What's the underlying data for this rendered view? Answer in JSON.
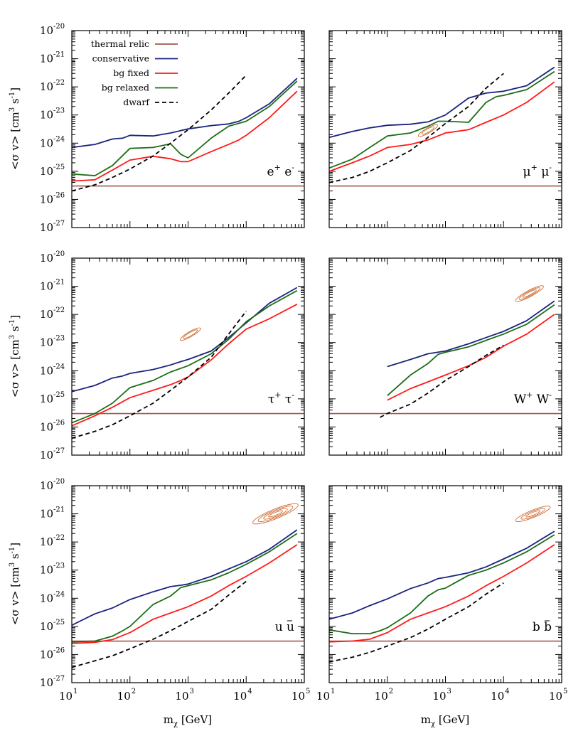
{
  "figure": {
    "ylabel": "<σ v> [cm³ s⁻¹]",
    "xlabel": "m_χ [GeV]",
    "ylabel_main": "<σ v> [cm",
    "ylabel_exp3": "3",
    "ylabel_mid": " s",
    "ylabel_expm1": "-1",
    "ylabel_end": "]",
    "xlabel_main": "m",
    "xlabel_sub": "χ",
    "xlabel_end": " [GeV]",
    "tick_base": "10"
  },
  "colors": {
    "thermal": "#a0584a",
    "conservative": "#1a237e",
    "bg_fixed": "#ff1a1a",
    "bg_relaxed": "#1b6e14",
    "dwarf": "#000000",
    "contour": "#cc6a30"
  },
  "legend": {
    "placement": "top-left of first panel",
    "entries": [
      {
        "key": "thermal",
        "label": "thermal relic"
      },
      {
        "key": "conservative",
        "label": "conservative"
      },
      {
        "key": "bg_fixed",
        "label": "bg fixed"
      },
      {
        "key": "bg_relaxed",
        "label": "bg relaxed"
      },
      {
        "key": "dwarf",
        "label": "dwarf"
      }
    ]
  },
  "chart_data": [
    {
      "type": "line",
      "channel": "e⁺ e⁻",
      "ch_a": "e",
      "ch_a_sup": "+",
      "ch_b": "e",
      "ch_b_sup": "-",
      "ch_bar": false,
      "xscale": "log",
      "yscale": "log",
      "xlim": [
        10,
        100000
      ],
      "ylim": [
        1e-27,
        1e-20
      ],
      "thermal": 3e-26,
      "series": [
        {
          "name": "conservative",
          "x": [
            10,
            25,
            50,
            75,
            100,
            250,
            500,
            1000,
            2500,
            5000,
            7500,
            10000,
            25000,
            75000
          ],
          "y": [
            7e-25,
            9e-25,
            1.4e-24,
            1.5e-24,
            1.9e-24,
            1.8e-24,
            2.3e-24,
            3.2e-24,
            4.2e-24,
            4.8e-24,
            6e-24,
            8e-24,
            2.5e-23,
            2e-22
          ]
        },
        {
          "name": "bg fixed",
          "x": [
            10,
            25,
            50,
            100,
            250,
            500,
            750,
            1000,
            2500,
            5000,
            7500,
            10000,
            25000,
            75000
          ],
          "y": [
            4.5e-26,
            5e-26,
            1.1e-25,
            2.5e-25,
            3.4e-25,
            2.8e-25,
            2.2e-25,
            2.2e-25,
            5e-25,
            9e-25,
            1.3e-24,
            1.9e-24,
            8e-24,
            7e-23
          ]
        },
        {
          "name": "bg relaxed",
          "x": [
            10,
            25,
            50,
            100,
            250,
            500,
            750,
            1000,
            2500,
            5000,
            10000,
            25000,
            75000
          ],
          "y": [
            8e-26,
            7e-26,
            1.6e-25,
            6.5e-25,
            7e-25,
            9.5e-25,
            4e-25,
            3e-25,
            1.5e-24,
            4e-24,
            6e-24,
            2e-23,
            1.6e-22
          ]
        },
        {
          "name": "dwarf",
          "x": [
            10,
            25,
            50,
            100,
            250,
            500,
            1000,
            2500,
            5000,
            10000
          ],
          "y": [
            2e-26,
            3.3e-26,
            6e-26,
            1.2e-25,
            3.5e-25,
            1e-24,
            3e-24,
            1.5e-23,
            6e-23,
            2.6e-22
          ]
        }
      ],
      "contours": []
    },
    {
      "type": "line",
      "channel": "μ⁺ μ⁻",
      "ch_a": "μ",
      "ch_a_sup": "+",
      "ch_b": "μ",
      "ch_b_sup": "-",
      "ch_bar": false,
      "xscale": "log",
      "yscale": "log",
      "xlim": [
        10,
        100000
      ],
      "ylim": [
        1e-27,
        1e-20
      ],
      "thermal": 3e-26,
      "series": [
        {
          "name": "conservative",
          "x": [
            10,
            25,
            50,
            100,
            250,
            500,
            1000,
            2500,
            5000,
            10000,
            25000,
            75000
          ],
          "y": [
            1.6e-24,
            2.6e-24,
            3.5e-24,
            4.3e-24,
            4.7e-24,
            5.7e-24,
            1e-23,
            4e-23,
            6e-23,
            7e-23,
            1.1e-22,
            5e-22
          ]
        },
        {
          "name": "bg fixed",
          "x": [
            10,
            25,
            50,
            100,
            250,
            500,
            1000,
            2500,
            5000,
            10000,
            25000,
            75000
          ],
          "y": [
            1e-25,
            2e-25,
            3.5e-25,
            7e-25,
            9e-25,
            1.3e-24,
            2.3e-24,
            3e-24,
            5.5e-24,
            1e-23,
            2.8e-23,
            1.5e-22
          ]
        },
        {
          "name": "bg relaxed",
          "x": [
            10,
            25,
            50,
            100,
            250,
            500,
            750,
            1000,
            2500,
            5000,
            7500,
            10000,
            25000,
            75000
          ],
          "y": [
            1.3e-25,
            2.7e-25,
            7e-25,
            1.8e-24,
            2.3e-24,
            4e-24,
            6e-24,
            6e-24,
            5.5e-24,
            2.8e-23,
            4.5e-23,
            5e-23,
            8e-23,
            3.5e-22
          ]
        },
        {
          "name": "dwarf",
          "x": [
            10,
            25,
            50,
            100,
            250,
            500,
            1000,
            2500,
            5000,
            10000
          ],
          "y": [
            4e-26,
            6e-26,
            1e-25,
            2e-25,
            5.5e-25,
            1.6e-24,
            5e-24,
            2e-23,
            9e-23,
            3e-22
          ]
        }
      ],
      "contours": [
        {
          "x": 500,
          "y": 2.8e-24,
          "rings": [
            [
              0.09,
              0.19
            ],
            [
              0.06,
              0.12
            ]
          ],
          "angle": -30
        }
      ]
    },
    {
      "type": "line",
      "channel": "τ⁺ τ⁻",
      "ch_a": "τ",
      "ch_a_sup": "+",
      "ch_b": "τ",
      "ch_b_sup": "-",
      "ch_bar": false,
      "xscale": "log",
      "yscale": "log",
      "xlim": [
        10,
        100000
      ],
      "ylim": [
        1e-27,
        1e-20
      ],
      "thermal": 3e-26,
      "series": [
        {
          "name": "conservative",
          "x": [
            10,
            25,
            50,
            75,
            100,
            250,
            500,
            750,
            1000,
            2500,
            5000,
            10000,
            25000,
            75000
          ],
          "y": [
            1.8e-25,
            3e-25,
            5.5e-25,
            6.5e-25,
            8e-25,
            1.1e-24,
            1.6e-24,
            2.1e-24,
            2.5e-24,
            5e-24,
            1.5e-23,
            5e-23,
            2.5e-22,
            9e-22
          ]
        },
        {
          "name": "bg fixed",
          "x": [
            10,
            25,
            50,
            100,
            250,
            500,
            750,
            1000,
            2500,
            5000,
            10000,
            25000,
            75000
          ],
          "y": [
            1.1e-26,
            2.5e-26,
            5e-26,
            1.1e-25,
            2e-25,
            3.2e-25,
            4.5e-25,
            6e-25,
            2.4e-24,
            9e-24,
            3e-23,
            7e-23,
            2.3e-22
          ]
        },
        {
          "name": "bg relaxed",
          "x": [
            10,
            25,
            50,
            100,
            250,
            500,
            1000,
            2500,
            5000,
            10000,
            25000,
            75000
          ],
          "y": [
            1.4e-26,
            3e-26,
            7e-26,
            2.5e-25,
            4.5e-25,
            9e-25,
            1.5e-24,
            4e-24,
            1.3e-23,
            5.5e-23,
            2e-22,
            7e-22
          ]
        },
        {
          "name": "dwarf",
          "x": [
            10,
            25,
            50,
            100,
            250,
            500,
            1000,
            2500,
            5000,
            10000
          ],
          "y": [
            4e-27,
            7e-27,
            1.2e-26,
            2.5e-26,
            7e-26,
            2e-25,
            6e-25,
            3e-24,
            2e-23,
            1.3e-22
          ]
        }
      ],
      "contours": [
        {
          "x": 1100,
          "y": 2e-23,
          "rings": [
            [
              0.09,
              0.2
            ],
            [
              0.06,
              0.14
            ]
          ],
          "angle": -30
        }
      ]
    },
    {
      "type": "line",
      "channel": "W⁺ W⁻",
      "ch_a": "W",
      "ch_a_sup": "+",
      "ch_b": "W",
      "ch_b_sup": "-",
      "ch_bar": false,
      "xscale": "log",
      "yscale": "log",
      "xlim": [
        10,
        100000
      ],
      "ylim": [
        1e-27,
        1e-20
      ],
      "thermal": 3e-26,
      "series": [
        {
          "name": "conservative",
          "x": [
            100,
            250,
            500,
            1000,
            2500,
            5000,
            10000,
            25000,
            75000
          ],
          "y": [
            1.4e-24,
            2.5e-24,
            4e-24,
            5e-24,
            9e-24,
            1.5e-23,
            2.5e-23,
            6e-23,
            3e-22
          ]
        },
        {
          "name": "bg fixed",
          "x": [
            100,
            250,
            500,
            1000,
            2500,
            5000,
            10000,
            25000,
            75000
          ],
          "y": [
            9e-26,
            2.3e-25,
            4e-25,
            7e-25,
            1.5e-24,
            3e-24,
            7.5e-24,
            2e-23,
            1e-22
          ]
        },
        {
          "name": "bg relaxed",
          "x": [
            100,
            250,
            500,
            750,
            1000,
            2500,
            5000,
            10000,
            25000,
            75000
          ],
          "y": [
            1.3e-25,
            7e-25,
            1.8e-24,
            3.8e-24,
            4.5e-24,
            7e-24,
            1.2e-23,
            2e-23,
            4.5e-23,
            2.2e-22
          ]
        },
        {
          "name": "dwarf",
          "x": [
            75,
            100,
            250,
            500,
            1000,
            2500,
            5000,
            10000
          ],
          "y": [
            2.2e-26,
            3e-26,
            6.5e-26,
            1.6e-25,
            4.5e-25,
            1.4e-24,
            3.5e-24,
            8e-24
          ]
        }
      ],
      "contours": [
        {
          "x": 28000,
          "y": 5.5e-22,
          "rings": [
            [
              0.11,
              0.27
            ],
            [
              0.08,
              0.2
            ],
            [
              0.05,
              0.13
            ]
          ],
          "angle": -28
        }
      ]
    },
    {
      "type": "line",
      "channel": "u ū",
      "ch_a": "u",
      "ch_a_sup": "",
      "ch_b": "u",
      "ch_b_sup": "",
      "ch_bar": true,
      "xscale": "log",
      "yscale": "log",
      "xlim": [
        10,
        100000
      ],
      "ylim": [
        1e-27,
        1e-20
      ],
      "thermal": 3e-26,
      "series": [
        {
          "name": "conservative",
          "x": [
            10,
            25,
            50,
            100,
            250,
            500,
            750,
            1000,
            2500,
            5000,
            10000,
            25000,
            75000
          ],
          "y": [
            1.1e-25,
            2.8e-25,
            4.5e-25,
            9e-25,
            1.7e-24,
            2.6e-24,
            2.9e-24,
            3.2e-24,
            6e-24,
            1.1e-23,
            2e-23,
            5.5e-23,
            2.7e-22
          ]
        },
        {
          "name": "bg fixed",
          "x": [
            10,
            25,
            50,
            100,
            250,
            500,
            1000,
            2500,
            5000,
            10000,
            25000,
            75000
          ],
          "y": [
            2.5e-26,
            2.7e-26,
            3.4e-26,
            6e-26,
            1.8e-25,
            3e-25,
            5e-25,
            1.2e-24,
            2.8e-24,
            6e-24,
            1.8e-23,
            8e-23
          ]
        },
        {
          "name": "bg relaxed",
          "x": [
            10,
            25,
            50,
            75,
            100,
            250,
            500,
            750,
            1000,
            2500,
            5000,
            10000,
            25000,
            75000
          ],
          "y": [
            2.8e-26,
            3e-26,
            4.5e-26,
            7e-26,
            1e-25,
            6e-25,
            1.2e-24,
            2.4e-24,
            2.8e-24,
            4.5e-24,
            8e-24,
            1.6e-23,
            4.5e-23,
            2e-22
          ]
        },
        {
          "name": "dwarf",
          "x": [
            10,
            25,
            50,
            100,
            250,
            500,
            1000,
            2500,
            5000,
            10000
          ],
          "y": [
            3.5e-27,
            6e-27,
            9e-27,
            1.6e-26,
            3.5e-26,
            7e-26,
            1.5e-25,
            4e-25,
            1.3e-24,
            4e-24
          ]
        }
      ],
      "contours": [
        {
          "x": 32000,
          "y": 1e-21,
          "rings": [
            [
              0.17,
              0.42
            ],
            [
              0.13,
              0.32
            ],
            [
              0.09,
              0.22
            ],
            [
              0.05,
              0.13
            ]
          ],
          "angle": -22
        }
      ]
    },
    {
      "type": "line",
      "channel": "b b̄",
      "ch_a": "b",
      "ch_a_sup": "",
      "ch_b": "b",
      "ch_b_sup": "",
      "ch_bar": true,
      "xscale": "log",
      "yscale": "log",
      "xlim": [
        10,
        100000
      ],
      "ylim": [
        1e-27,
        1e-20
      ],
      "thermal": 3e-26,
      "series": [
        {
          "name": "conservative",
          "x": [
            10,
            25,
            50,
            100,
            250,
            500,
            750,
            1000,
            2500,
            5000,
            10000,
            25000,
            75000
          ],
          "y": [
            1.8e-25,
            3e-25,
            5.5e-25,
            9.5e-25,
            2.2e-24,
            3.5e-24,
            5e-24,
            5.5e-24,
            8e-24,
            1.3e-23,
            2.5e-23,
            6e-23,
            2.4e-22
          ]
        },
        {
          "name": "bg fixed",
          "x": [
            10,
            25,
            50,
            100,
            250,
            500,
            1000,
            2500,
            5000,
            10000,
            25000,
            75000
          ],
          "y": [
            2.8e-26,
            3e-26,
            3.5e-26,
            6e-26,
            1.8e-25,
            3e-25,
            5e-25,
            1.2e-24,
            2.8e-24,
            6e-24,
            1.8e-23,
            8e-23
          ]
        },
        {
          "name": "bg relaxed",
          "x": [
            10,
            25,
            50,
            75,
            100,
            250,
            500,
            750,
            1000,
            2500,
            5000,
            10000,
            25000,
            75000
          ],
          "y": [
            7.5e-26,
            5.5e-26,
            5.5e-26,
            7e-26,
            9e-26,
            3e-25,
            1.2e-24,
            2e-24,
            2.3e-24,
            6.5e-24,
            1e-23,
            1.8e-23,
            4.5e-23,
            1.8e-22
          ]
        },
        {
          "name": "dwarf",
          "x": [
            10,
            25,
            50,
            100,
            250,
            500,
            1000,
            2500,
            5000,
            10000
          ],
          "y": [
            5.5e-27,
            8e-27,
            1.2e-26,
            2e-26,
            4e-26,
            8e-26,
            1.8e-25,
            5e-25,
            1.4e-24,
            3.5e-24
          ]
        }
      ],
      "contours": [
        {
          "x": 32000,
          "y": 1e-21,
          "rings": [
            [
              0.13,
              0.32
            ],
            [
              0.09,
              0.22
            ],
            [
              0.05,
              0.13
            ]
          ],
          "angle": -22
        }
      ]
    }
  ]
}
